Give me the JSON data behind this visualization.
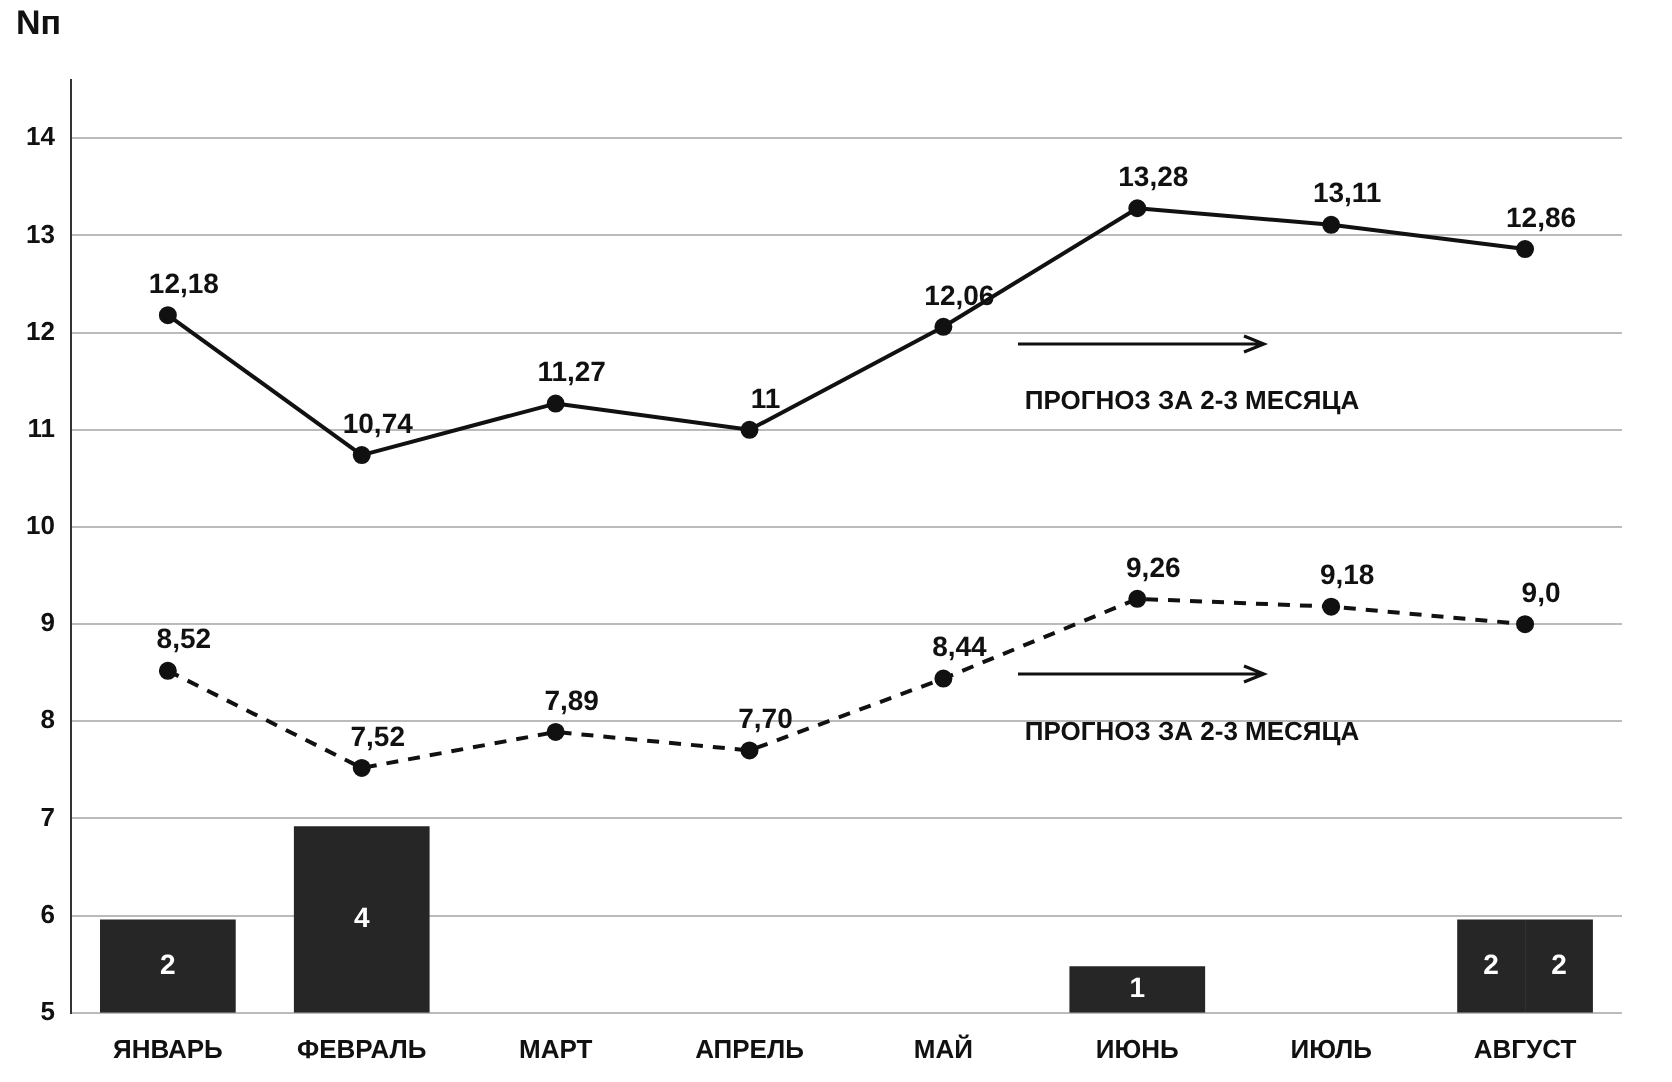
{
  "chart_data": {
    "type": "line",
    "ylabel": "Nп",
    "categories": [
      "ЯНВАРЬ",
      "ФЕВРАЛЬ",
      "МАРТ",
      "АПРЕЛЬ",
      "МАЙ",
      "ИЮНЬ",
      "ИЮЛЬ",
      "АВГУСТ"
    ],
    "ylim": [
      5,
      14.6
    ],
    "yticks": [
      5,
      6,
      7,
      8,
      9,
      10,
      11,
      12,
      13,
      14
    ],
    "y2lim": [
      0,
      20
    ],
    "grid": "y",
    "marker": "circle",
    "series": [
      {
        "type": "bar",
        "axis": "y2",
        "color": "#262626",
        "values": [
          2,
          4,
          null,
          null,
          null,
          1,
          null,
          2
        ],
        "value_labels": [
          "2",
          "4",
          null,
          null,
          null,
          "1",
          null,
          "2"
        ]
      },
      {
        "type": "bar",
        "axis": "y2",
        "color": "#262626",
        "values": [
          null,
          null,
          null,
          null,
          null,
          null,
          null,
          2
        ],
        "value_labels": [
          null,
          null,
          null,
          null,
          null,
          null,
          null,
          "2"
        ]
      },
      {
        "color": "#111111",
        "line_style": "solid",
        "values": [
          12.18,
          10.74,
          11.27,
          11,
          12.06,
          13.28,
          13.11,
          12.86
        ],
        "value_labels": [
          "12,18",
          "10,74",
          "11,27",
          "11",
          "12,06",
          "13,28",
          "13,11",
          "12,86"
        ]
      },
      {
        "color": "#111111",
        "line_style": "dashed",
        "values": [
          8.52,
          7.52,
          7.89,
          7.7,
          8.44,
          9.26,
          9.18,
          9.0
        ],
        "value_labels": [
          "8,52",
          "7,52",
          "7,89",
          "7,70",
          "8,44",
          "9,26",
          "9,18",
          "9,0"
        ]
      }
    ],
    "annotations": [
      "ПРОГНОЗ ЗА 2-3 МЕСЯЦА",
      "ПРОГНОЗ ЗА 2-3 МЕСЯЦА"
    ]
  }
}
